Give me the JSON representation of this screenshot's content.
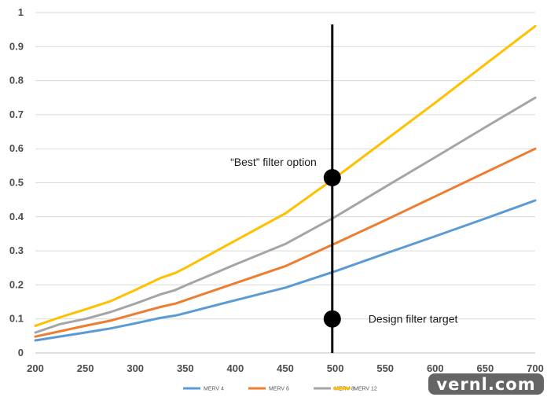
{
  "chart_data": {
    "type": "line",
    "title": "",
    "xlabel": "",
    "ylabel": "",
    "xlim": [
      200,
      700
    ],
    "ylim": [
      0,
      1
    ],
    "xticks": [
      200,
      250,
      300,
      350,
      400,
      450,
      500,
      550,
      600,
      650,
      700
    ],
    "yticks": [
      0,
      0.1,
      0.2,
      0.3,
      0.4,
      0.5,
      0.6,
      0.7,
      0.8,
      0.9,
      1
    ],
    "grid": "horizontal",
    "legend": "bottom",
    "series": [
      {
        "name": "MERV 4",
        "color": "#5b9bd5",
        "x": [
          200,
          250,
          275,
          300,
          325,
          340,
          350,
          400,
          450,
          500,
          550,
          600,
          650,
          700
        ],
        "y": [
          0.037,
          0.06,
          0.072,
          0.087,
          0.103,
          0.11,
          0.117,
          0.155,
          0.192,
          0.24,
          0.292,
          0.343,
          0.395,
          0.448
        ]
      },
      {
        "name": "MERV 6",
        "color": "#ed7d31",
        "x": [
          200,
          250,
          275,
          300,
          325,
          340,
          350,
          400,
          450,
          500,
          550,
          600,
          650,
          700
        ],
        "y": [
          0.048,
          0.08,
          0.095,
          0.115,
          0.135,
          0.145,
          0.155,
          0.205,
          0.255,
          0.322,
          0.39,
          0.46,
          0.53,
          0.6
        ]
      },
      {
        "name": "MERV 8",
        "color": "#a5a5a5",
        "x": [
          200,
          225,
          250,
          275,
          300,
          325,
          340,
          350,
          400,
          450,
          475,
          500,
          550,
          600,
          650,
          700
        ],
        "y": [
          0.06,
          0.085,
          0.1,
          0.12,
          0.145,
          0.172,
          0.185,
          0.198,
          0.26,
          0.32,
          0.36,
          0.4,
          0.488,
          0.575,
          0.663,
          0.75
        ]
      },
      {
        "name": "MERV 12",
        "color": "#ffc000",
        "x": [
          200,
          225,
          250,
          275,
          300,
          325,
          340,
          350,
          400,
          450,
          500,
          550,
          600,
          650,
          700
        ],
        "y": [
          0.08,
          0.105,
          0.128,
          0.152,
          0.185,
          0.22,
          0.235,
          0.25,
          0.33,
          0.41,
          0.515,
          0.625,
          0.735,
          0.848,
          0.96
        ]
      }
    ],
    "marker_line": {
      "x": 497,
      "y_top": 0.965,
      "y_bottom": 0
    },
    "annotations": [
      {
        "text": "“Best” filter option",
        "x": 497,
        "y": 0.515,
        "anchor": "left"
      },
      {
        "text": "Design filter target",
        "x": 497,
        "y": 0.1,
        "anchor": "right"
      }
    ],
    "watermark": "vernl.com"
  }
}
